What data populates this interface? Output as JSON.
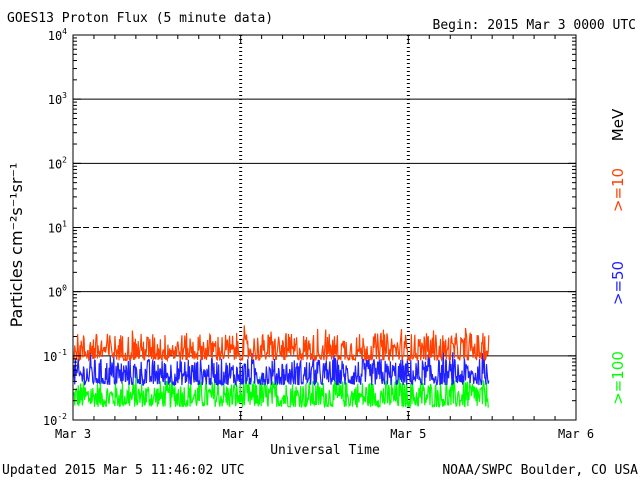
{
  "header": {
    "title": "GOES13 Proton Flux (5 minute data)",
    "begin": "Begin: 2015 Mar 3 0000 UTC"
  },
  "footer": {
    "updated": "Updated 2015 Mar  5 11:46:02 UTC",
    "credit": "NOAA/SWPC Boulder, CO USA"
  },
  "chart_data": {
    "type": "line",
    "xlabel": "Universal Time",
    "ylabel": "Particles cm⁻²s⁻¹sr⁻¹",
    "yscale": "log",
    "ylim": [
      0.01,
      10000
    ],
    "xlim": [
      "Mar 3",
      "Mar 6"
    ],
    "x_ticks": [
      "Mar 3",
      "Mar 4",
      "Mar 5",
      "Mar 6"
    ],
    "y_ticks": [
      {
        "base": "10",
        "exp": "-2",
        "value": 0.01
      },
      {
        "base": "10",
        "exp": "-1",
        "value": 0.1
      },
      {
        "base": "10",
        "exp": "0",
        "value": 1
      },
      {
        "base": "10",
        "exp": "1",
        "value": 10
      },
      {
        "base": "10",
        "exp": "2",
        "value": 100
      },
      {
        "base": "10",
        "exp": "3",
        "value": 1000
      },
      {
        "base": "10",
        "exp": "4",
        "value": 10000
      }
    ],
    "horizontal_lines": [
      {
        "value": 0.1,
        "style": "solid"
      },
      {
        "value": 1,
        "style": "solid"
      },
      {
        "value": 10,
        "style": "dashed"
      },
      {
        "value": 100,
        "style": "solid"
      },
      {
        "value": 1000,
        "style": "solid"
      }
    ],
    "day_markers": [
      "Mar 4",
      "Mar 5"
    ],
    "data_end_day": 2.48,
    "legend_unit": "MeV",
    "series": [
      {
        "name": ">=10",
        "color": "#ff4000",
        "approx_range": [
          0.085,
          0.3
        ]
      },
      {
        "name": ">=50",
        "color": "#2020ff",
        "approx_range": [
          0.035,
          0.12
        ]
      },
      {
        "name": ">=100",
        "color": "#00ff00",
        "approx_range": [
          0.016,
          0.055
        ]
      }
    ]
  }
}
